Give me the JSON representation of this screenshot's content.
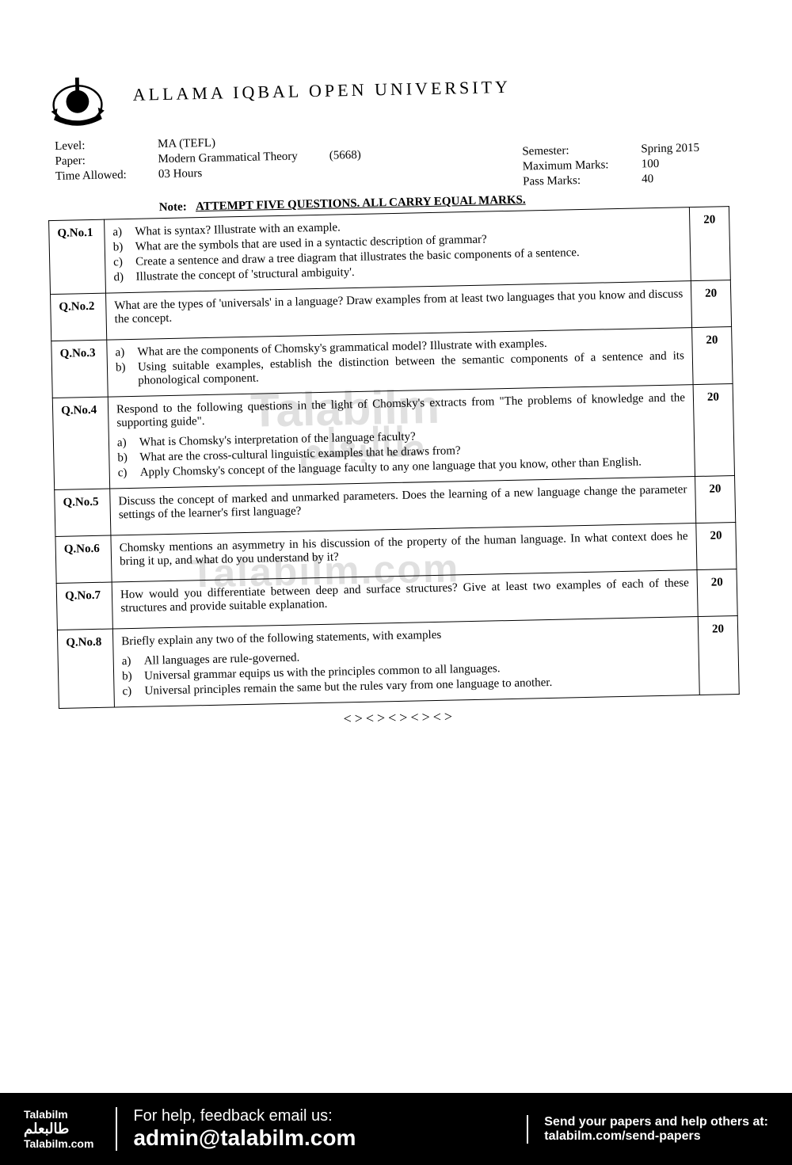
{
  "university": "ALLAMA IQBAL OPEN UNIVERSITY",
  "meta": {
    "level_label": "Level:",
    "level_value": "MA (TEFL)",
    "paper_label": "Paper:",
    "paper_value": "Modern Grammatical Theory",
    "paper_code": "(5668)",
    "time_label": "Time Allowed:",
    "time_value": "03 Hours",
    "semester_label": "Semester:",
    "semester_value": "Spring 2015",
    "max_label": "Maximum Marks:",
    "max_value": "100",
    "pass_label": "Pass Marks:",
    "pass_value": "40"
  },
  "note_prefix": "Note:",
  "note": "ATTEMPT FIVE QUESTIONS. ALL CARRY EQUAL MARKS.",
  "questions": [
    {
      "no": "Q.No.1",
      "marks": "20",
      "subs": [
        {
          "l": "a)",
          "t": "What is syntax? Illustrate with an example."
        },
        {
          "l": "b)",
          "t": "What are the symbols that are used in a syntactic description of grammar?"
        },
        {
          "l": "c)",
          "t": "Create a sentence and draw a tree diagram that illustrates the basic components of a sentence."
        },
        {
          "l": "d)",
          "t": "Illustrate the concept of 'structural ambiguity'."
        }
      ]
    },
    {
      "no": "Q.No.2",
      "marks": "20",
      "intro": "What are the types of 'universals' in a language? Draw examples from at least two languages that you know and discuss the concept."
    },
    {
      "no": "Q.No.3",
      "marks": "20",
      "subs": [
        {
          "l": "a)",
          "t": "What are the components of Chomsky's grammatical model? Illustrate with examples."
        },
        {
          "l": "b)",
          "t": "Using suitable examples, establish the distinction between the semantic components of a sentence and its phonological component."
        }
      ]
    },
    {
      "no": "Q.No.4",
      "marks": "20",
      "intro": "Respond to the following questions in the light of Chomsky's extracts from \"The problems of knowledge and the supporting guide\".",
      "subs": [
        {
          "l": "a)",
          "t": "What is Chomsky's interpretation of the language faculty?"
        },
        {
          "l": "b)",
          "t": "What are the cross-cultural linguistic examples that he draws from?"
        },
        {
          "l": "c)",
          "t": "Apply Chomsky's concept of the language faculty to any one language that you know, other than English."
        }
      ]
    },
    {
      "no": "Q.No.5",
      "marks": "20",
      "intro": "Discuss the concept of marked and unmarked parameters. Does the learning of a new language change the parameter settings of the learner's first language?"
    },
    {
      "no": "Q.No.6",
      "marks": "20",
      "intro": "Chomsky mentions an asymmetry in his discussion of the property of the human language. In what context does he bring it up, and what do you understand by it?"
    },
    {
      "no": "Q.No.7",
      "marks": "20",
      "intro": "How would you differentiate between deep and surface structures? Give at least two examples of each of these structures and provide suitable explanation."
    },
    {
      "no": "Q.No.8",
      "marks": "20",
      "intro": "Briefly explain any two of the following statements, with examples",
      "subs": [
        {
          "l": "a)",
          "t": "All languages are rule-governed."
        },
        {
          "l": "b)",
          "t": "Universal grammar equips us with the principles common to all languages."
        },
        {
          "l": "c)",
          "t": "Universal principles remain the same but the rules vary from one language to another."
        }
      ]
    }
  ],
  "end_ornament": "<><><><><>",
  "watermarks": {
    "w1": "Talabilm",
    "w2": "طالبعلم",
    "w3": "Talabilm.com"
  },
  "footer": {
    "brand": "Talabilm",
    "brand_ar": "طالبعلم",
    "brand_site": "Talabilm.com",
    "mid_l1": "For help, feedback email us:",
    "mid_l2": "admin@talabilm.com",
    "right_l1": "Send your papers and help others at:",
    "right_l2": "talabilm.com/send-papers"
  }
}
